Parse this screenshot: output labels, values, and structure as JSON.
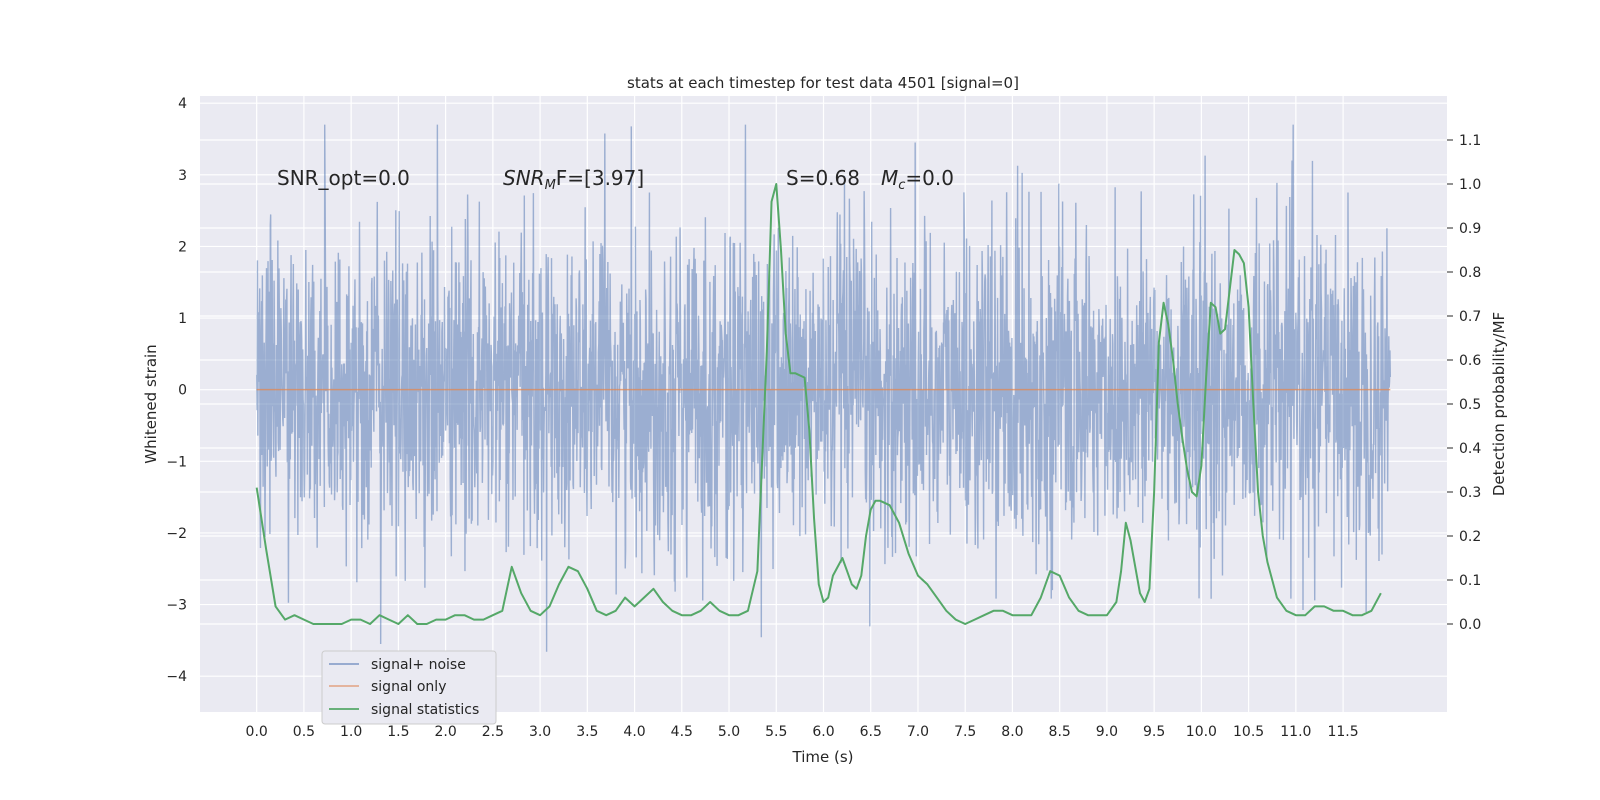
{
  "chart_data": {
    "type": "line",
    "title": "stats at each timestep for test data 4501 [signal=0]",
    "xlabel": "Time (s)",
    "ylabel_left": "Whitened strain",
    "ylabel_right": "Detection probability/MF",
    "xlim": [
      -0.6,
      12.6
    ],
    "ylim_left": [
      -4.5,
      4.1
    ],
    "ylim_right": [
      -0.2,
      1.2
    ],
    "grid": true,
    "legend_position": "lower-left",
    "x_ticks": [
      0.0,
      0.5,
      1.0,
      1.5,
      2.0,
      2.5,
      3.0,
      3.5,
      4.0,
      4.5,
      5.0,
      5.5,
      6.0,
      6.5,
      7.0,
      7.5,
      8.0,
      8.5,
      9.0,
      9.5,
      10.0,
      10.5,
      11.0,
      11.5
    ],
    "x_tick_labels": [
      "0.0",
      "0.5",
      "1.0",
      "1.5",
      "2.0",
      "2.5",
      "3.0",
      "3.5",
      "4.0",
      "4.5",
      "5.0",
      "5.5",
      "6.0",
      "6.5",
      "7.0",
      "7.5",
      "8.0",
      "8.5",
      "9.0",
      "9.5",
      "10.0",
      "10.5",
      "11.0",
      "11.5"
    ],
    "y_ticks_left": [
      4,
      3,
      2,
      1,
      0,
      -1,
      -2,
      -3,
      -4
    ],
    "y_tick_labels_left": [
      "4",
      "3",
      "2",
      "1",
      "0",
      "−1",
      "−2",
      "−3",
      "−4"
    ],
    "y_ticks_right": [
      1.1,
      1.0,
      0.9,
      0.8,
      0.7,
      0.6,
      0.5,
      0.4,
      0.3,
      0.2,
      0.1,
      0.0
    ],
    "y_tick_labels_right": [
      "1.1",
      "1.0",
      "0.9",
      "0.8",
      "0.7",
      "0.6",
      "0.5",
      "0.4",
      "0.3",
      "0.2",
      "0.1",
      "0.0"
    ],
    "annotations": {
      "snr_opt": "SNR_opt=0.0",
      "snr_mf": "SNR",
      "snr_mf_sub": "M",
      "snr_mf_tail": "F=[3.97]",
      "s_value": "S=0.68",
      "mc_main": "M",
      "mc_sub": "c",
      "mc_tail": "=0.0"
    },
    "colors": {
      "noise": "#4c72b0",
      "signal": "#dd8452",
      "stats": "#55a868",
      "background": "#eaeaf2",
      "grid": "#ffffff"
    },
    "series": [
      {
        "name": "signal+ noise",
        "axis": "left",
        "x_range": [
          0.0,
          12.0
        ],
        "amplitude_envelope": [
          -3.7,
          3.7
        ],
        "representation": "dense noise band"
      },
      {
        "name": "signal only",
        "axis": "left",
        "x": [
          0.0,
          12.0
        ],
        "y": [
          0.0,
          0.0
        ]
      },
      {
        "name": "signal statistics",
        "axis": "right",
        "x": [
          0.0,
          0.1,
          0.2,
          0.3,
          0.4,
          0.5,
          0.6,
          0.7,
          0.8,
          0.9,
          1.0,
          1.1,
          1.2,
          1.3,
          1.4,
          1.5,
          1.6,
          1.7,
          1.8,
          1.9,
          2.0,
          2.1,
          2.2,
          2.3,
          2.4,
          2.5,
          2.6,
          2.7,
          2.8,
          2.9,
          3.0,
          3.1,
          3.2,
          3.3,
          3.4,
          3.5,
          3.6,
          3.7,
          3.8,
          3.9,
          4.0,
          4.1,
          4.2,
          4.3,
          4.4,
          4.5,
          4.6,
          4.7,
          4.8,
          4.9,
          5.0,
          5.1,
          5.2,
          5.3,
          5.4,
          5.45,
          5.5,
          5.55,
          5.6,
          5.65,
          5.7,
          5.8,
          5.85,
          5.9,
          5.95,
          6.0,
          6.05,
          6.1,
          6.2,
          6.25,
          6.3,
          6.35,
          6.4,
          6.45,
          6.5,
          6.55,
          6.6,
          6.7,
          6.8,
          6.9,
          7.0,
          7.1,
          7.2,
          7.3,
          7.4,
          7.5,
          7.6,
          7.7,
          7.8,
          7.9,
          8.0,
          8.1,
          8.2,
          8.3,
          8.4,
          8.5,
          8.6,
          8.7,
          8.8,
          8.9,
          9.0,
          9.1,
          9.15,
          9.2,
          9.25,
          9.3,
          9.35,
          9.4,
          9.45,
          9.5,
          9.55,
          9.6,
          9.65,
          9.7,
          9.75,
          9.8,
          9.85,
          9.9,
          9.95,
          10.0,
          10.05,
          10.1,
          10.15,
          10.2,
          10.25,
          10.3,
          10.35,
          10.4,
          10.45,
          10.5,
          10.55,
          10.6,
          10.65,
          10.7,
          10.8,
          10.9,
          11.0,
          11.1,
          11.2,
          11.3,
          11.4,
          11.5,
          11.6,
          11.7,
          11.8,
          11.9
        ],
        "y": [
          0.31,
          0.17,
          0.04,
          0.01,
          0.02,
          0.01,
          0.0,
          0.0,
          0.0,
          0.0,
          0.01,
          0.01,
          0.0,
          0.02,
          0.01,
          0.0,
          0.02,
          0.0,
          0.0,
          0.01,
          0.01,
          0.02,
          0.02,
          0.01,
          0.01,
          0.02,
          0.03,
          0.13,
          0.07,
          0.03,
          0.02,
          0.04,
          0.09,
          0.13,
          0.12,
          0.08,
          0.03,
          0.02,
          0.03,
          0.06,
          0.04,
          0.06,
          0.08,
          0.05,
          0.03,
          0.02,
          0.02,
          0.03,
          0.05,
          0.03,
          0.02,
          0.02,
          0.03,
          0.12,
          0.62,
          0.96,
          1.0,
          0.85,
          0.66,
          0.57,
          0.57,
          0.56,
          0.44,
          0.24,
          0.09,
          0.05,
          0.06,
          0.11,
          0.15,
          0.12,
          0.09,
          0.08,
          0.11,
          0.2,
          0.26,
          0.28,
          0.28,
          0.27,
          0.23,
          0.16,
          0.11,
          0.09,
          0.06,
          0.03,
          0.01,
          0.0,
          0.01,
          0.02,
          0.03,
          0.03,
          0.02,
          0.02,
          0.02,
          0.06,
          0.12,
          0.11,
          0.06,
          0.03,
          0.02,
          0.02,
          0.02,
          0.05,
          0.12,
          0.23,
          0.19,
          0.13,
          0.07,
          0.05,
          0.08,
          0.3,
          0.64,
          0.73,
          0.68,
          0.6,
          0.5,
          0.42,
          0.35,
          0.3,
          0.29,
          0.36,
          0.56,
          0.73,
          0.72,
          0.66,
          0.67,
          0.76,
          0.85,
          0.84,
          0.82,
          0.72,
          0.5,
          0.3,
          0.2,
          0.14,
          0.06,
          0.03,
          0.02,
          0.02,
          0.04,
          0.04,
          0.03,
          0.03,
          0.02,
          0.02,
          0.03,
          0.07
        ]
      }
    ],
    "legend_entries": [
      "signal+ noise",
      "signal only",
      "signal statistics"
    ]
  }
}
